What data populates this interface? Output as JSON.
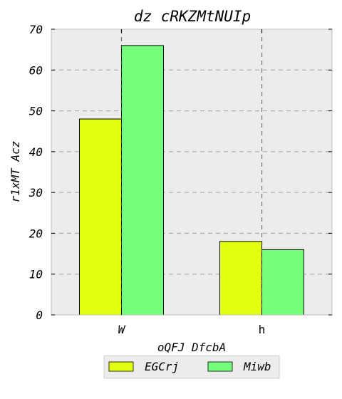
{
  "chart_data": {
    "type": "bar",
    "title": "dz cRKZMtNUIp",
    "xlabel": "oQFJ DfcbA",
    "ylabel": "r1xMT Acz",
    "categories": [
      "W",
      "h"
    ],
    "series": [
      {
        "name": "EGCrj",
        "values": [
          48,
          18
        ],
        "color": "#e2ff12"
      },
      {
        "name": "Miwb",
        "values": [
          66,
          16
        ],
        "color": "#74ff7c"
      }
    ],
    "ylim": [
      0,
      70
    ],
    "yticks": [
      0,
      10,
      20,
      30,
      40,
      50,
      60,
      70
    ],
    "grid": true,
    "legend_position": "bottom-center",
    "plot_background": "#ececec",
    "grid_color": "#b0b0b0"
  }
}
